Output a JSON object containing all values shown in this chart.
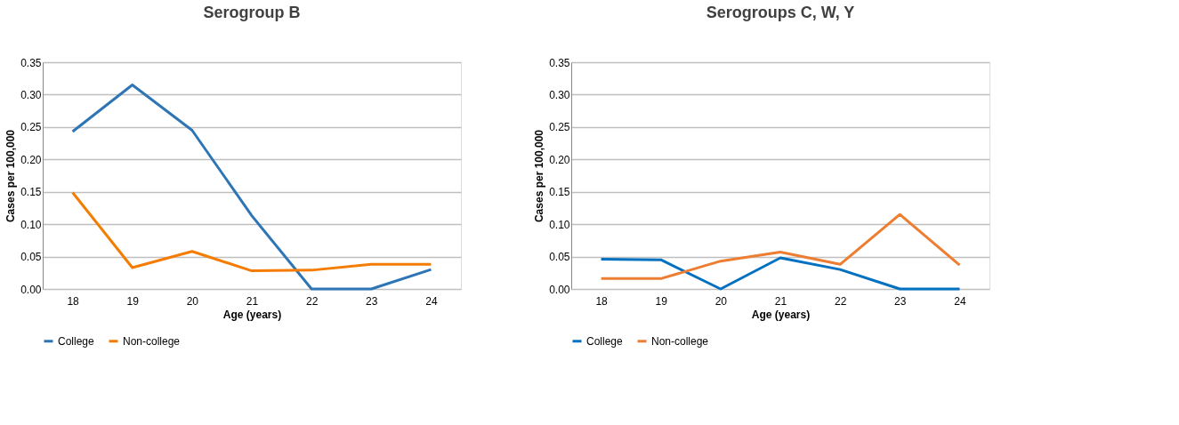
{
  "chart_data": [
    {
      "type": "line",
      "title": "Serogroup B",
      "xlabel": "Age (years)",
      "ylabel": "Cases per 100,000",
      "categories": [
        "18",
        "19",
        "20",
        "21",
        "22",
        "23",
        "24"
      ],
      "series": [
        {
          "name": "College",
          "color": "#2e75b6",
          "values": [
            0.243,
            0.315,
            0.245,
            0.113,
            0,
            0,
            0.03
          ]
        },
        {
          "name": "Non-college",
          "color": "#f57c00",
          "values": [
            0.149,
            0.033,
            0.058,
            0.028,
            0.029,
            0.038,
            0.038
          ]
        }
      ],
      "ylim": [
        0,
        0.35
      ],
      "yticks": [
        {
          "value": 0,
          "label": "0.00"
        },
        {
          "value": 0.05,
          "label": "0.05"
        },
        {
          "value": 0.1,
          "label": "0.10"
        },
        {
          "value": 0.15,
          "label": "0.15"
        },
        {
          "value": 0.2,
          "label": "0.20"
        },
        {
          "value": 0.25,
          "label": "0.25"
        },
        {
          "value": 0.3,
          "label": "0.30"
        },
        {
          "value": 0.35,
          "label": "0.35"
        }
      ],
      "grid": "y",
      "legend": "bottom",
      "marker": "none",
      "line_style": "solid"
    },
    {
      "type": "line",
      "title": "Serogroups C, W, Y",
      "xlabel": "Age (years)",
      "ylabel": "Cases per 100,000",
      "categories": [
        "18",
        "19",
        "20",
        "21",
        "22",
        "23",
        "24"
      ],
      "series": [
        {
          "name": "College",
          "color": "#0070c0",
          "values": [
            0.046,
            0.045,
            0,
            0.048,
            0.03,
            0,
            0
          ]
        },
        {
          "name": "Non-college",
          "color": "#ed7d31",
          "values": [
            0.016,
            0.016,
            0.043,
            0.057,
            0.038,
            0.115,
            0.037
          ]
        }
      ],
      "ylim": [
        0,
        0.35
      ],
      "yticks": [
        {
          "value": 0,
          "label": "0.00"
        },
        {
          "value": 0.05,
          "label": "0.05"
        },
        {
          "value": 0.1,
          "label": "0.10"
        },
        {
          "value": 0.15,
          "label": "0.15"
        },
        {
          "value": 0.2,
          "label": "0.20"
        },
        {
          "value": 0.25,
          "label": "0.25"
        },
        {
          "value": 0.3,
          "label": "0.30"
        },
        {
          "value": 0.35,
          "label": "0.35"
        }
      ],
      "grid": "y",
      "legend": "bottom",
      "marker": "none",
      "line_style": "solid"
    }
  ]
}
